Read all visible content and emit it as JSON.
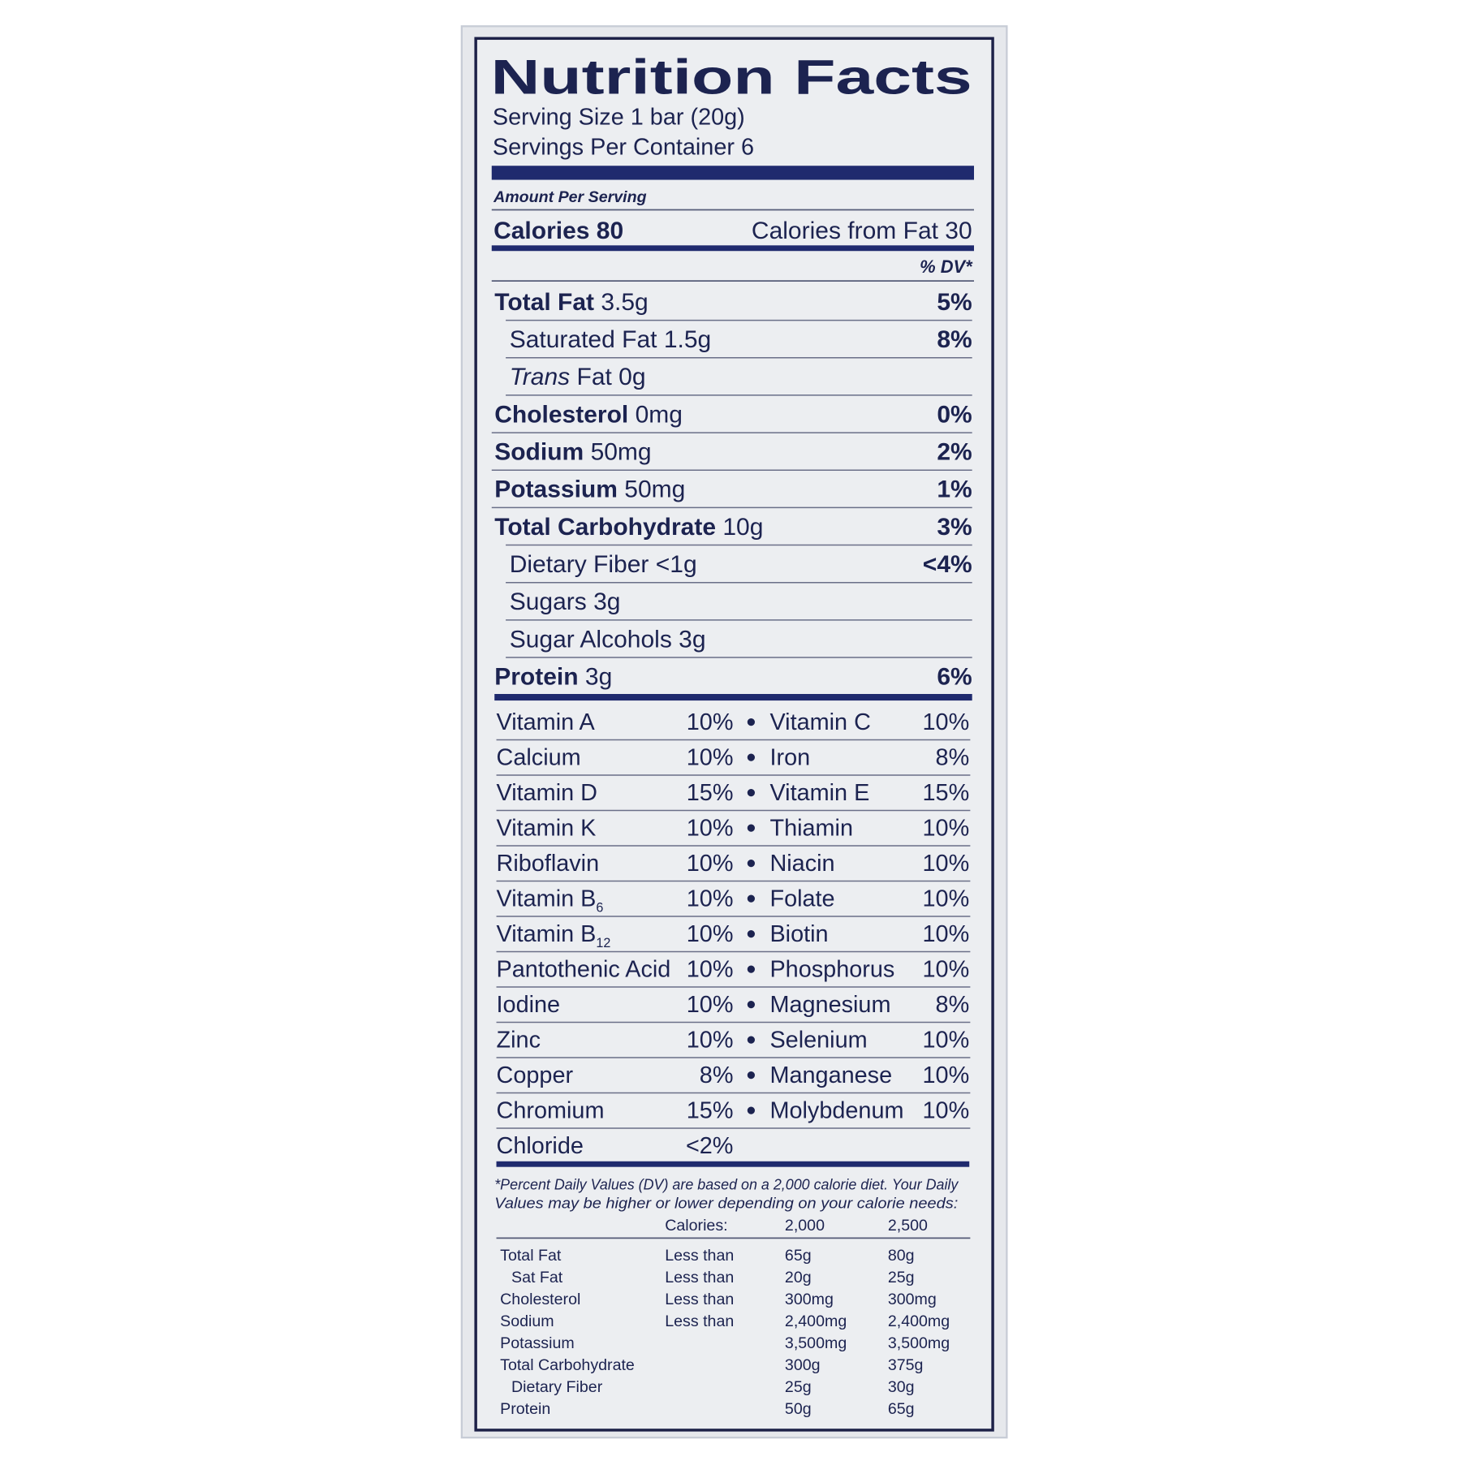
{
  "header": {
    "title": "Nutrition Facts",
    "serving_size": "Serving Size 1 bar (20g)",
    "servings_per_container": "Servings Per Container 6"
  },
  "amount_per_serving": "Amount Per Serving",
  "calories": {
    "label": "Calories 80",
    "from_fat": "Calories from Fat 30"
  },
  "dv_header": "% DV*",
  "nutrients": [
    {
      "name": "Total Fat",
      "amount": "3.5g",
      "dv": "5%",
      "bold": true
    },
    {
      "name": "Saturated Fat",
      "amount": "1.5g",
      "dv": "8%",
      "indent": true
    },
    {
      "name": "Trans",
      "amount": "Fat 0g",
      "indent": true,
      "italic": true
    },
    {
      "name": "Cholesterol",
      "amount": "0mg",
      "dv": "0%",
      "bold": true
    },
    {
      "name": "Sodium",
      "amount": "50mg",
      "dv": "2%",
      "bold": true
    },
    {
      "name": "Potassium",
      "amount": "50mg",
      "dv": "1%",
      "bold": true
    },
    {
      "name": "Total Carbohydrate",
      "amount": "10g",
      "dv": "3%",
      "bold": true
    },
    {
      "name": "Dietary Fiber",
      "amount": "<1g",
      "dv": "<4%",
      "indent": true
    },
    {
      "name": "Sugars",
      "amount": "3g",
      "indent": true
    },
    {
      "name": "Sugar Alcohols",
      "amount": "3g",
      "indent": true
    },
    {
      "name": "Protein",
      "amount": "3g",
      "dv": "6%",
      "bold": true
    }
  ],
  "vitamins": [
    {
      "left": {
        "name": "Vitamin A",
        "dv": "10%"
      },
      "right": {
        "name": "Vitamin C",
        "dv": "10%"
      }
    },
    {
      "left": {
        "name": "Calcium",
        "dv": "10%"
      },
      "right": {
        "name": "Iron",
        "dv": "8%"
      }
    },
    {
      "left": {
        "name": "Vitamin D",
        "dv": "15%"
      },
      "right": {
        "name": "Vitamin E",
        "dv": "15%"
      }
    },
    {
      "left": {
        "name": "Vitamin K",
        "dv": "10%"
      },
      "right": {
        "name": "Thiamin",
        "dv": "10%"
      }
    },
    {
      "left": {
        "name": "Riboflavin",
        "dv": "10%"
      },
      "right": {
        "name": "Niacin",
        "dv": "10%"
      }
    },
    {
      "left": {
        "name": "Vitamin B",
        "sub": "6",
        "dv": "10%"
      },
      "right": {
        "name": "Folate",
        "dv": "10%"
      }
    },
    {
      "left": {
        "name": "Vitamin B",
        "sub": "12",
        "dv": "10%"
      },
      "right": {
        "name": "Biotin",
        "dv": "10%"
      }
    },
    {
      "left": {
        "name": "Pantothenic Acid",
        "dv": "10%"
      },
      "right": {
        "name": "Phosphorus",
        "dv": "10%"
      }
    },
    {
      "left": {
        "name": "Iodine",
        "dv": "10%"
      },
      "right": {
        "name": "Magnesium",
        "dv": "8%"
      }
    },
    {
      "left": {
        "name": "Zinc",
        "dv": "10%"
      },
      "right": {
        "name": "Selenium",
        "dv": "10%"
      }
    },
    {
      "left": {
        "name": "Copper",
        "dv": "8%"
      },
      "right": {
        "name": "Manganese",
        "dv": "10%"
      }
    },
    {
      "left": {
        "name": "Chromium",
        "dv": "15%"
      },
      "right": {
        "name": "Molybdenum",
        "dv": "10%"
      }
    },
    {
      "left": {
        "name": "Chloride",
        "dv": "<2%"
      }
    }
  ],
  "footnote": [
    "*Percent Daily Values (DV) are based on a 2,000 calorie diet. Your Daily",
    "Values may be higher or lower depending on your calorie needs:"
  ],
  "dv_table": {
    "header": {
      "label": "Calories:",
      "col1": "2,000",
      "col2": "2,500"
    },
    "rows": [
      {
        "nutrient": "Total Fat",
        "qualifier": "Less than",
        "col1": "65g",
        "col2": "80g"
      },
      {
        "nutrient": "Sat Fat",
        "qualifier": "Less than",
        "col1": "20g",
        "col2": "25g",
        "indent": true
      },
      {
        "nutrient": "Cholesterol",
        "qualifier": "Less than",
        "col1": "300mg",
        "col2": "300mg"
      },
      {
        "nutrient": "Sodium",
        "qualifier": "Less than",
        "col1": "2,400mg",
        "col2": "2,400mg"
      },
      {
        "nutrient": "Potassium",
        "col1": "3,500mg",
        "col2": "3,500mg"
      },
      {
        "nutrient": "Total Carbohydrate",
        "col1": "300g",
        "col2": "375g"
      },
      {
        "nutrient": "Dietary Fiber",
        "col1": "25g",
        "col2": "30g",
        "indent": true
      },
      {
        "nutrient": "Protein",
        "col1": "50g",
        "col2": "65g"
      }
    ]
  }
}
